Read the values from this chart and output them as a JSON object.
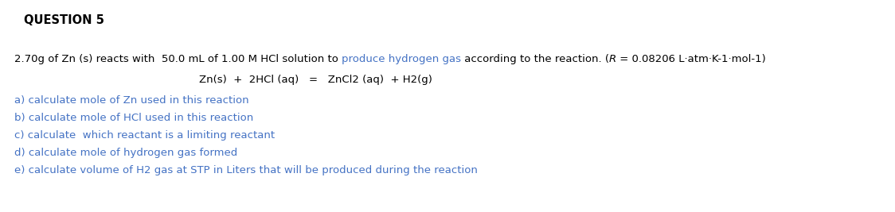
{
  "title": "QUESTION 5",
  "title_fontsize": 10.5,
  "title_fontweight": "bold",
  "title_color": "#000000",
  "line1_parts": [
    {
      "text": "2.70g of Zn (s) reacts with  50.0 mL of 1.00 M HCl solution to ",
      "color": "#000000",
      "italic": false
    },
    {
      "text": "produce hydrogen gas",
      "color": "#4472C4",
      "italic": false
    },
    {
      "text": " according to the reaction. (",
      "color": "#000000",
      "italic": false
    },
    {
      "text": "R",
      "color": "#000000",
      "italic": true
    },
    {
      "text": " = 0.08206 L·atm·K-1·mol-1)",
      "color": "#000000",
      "italic": false
    }
  ],
  "line2": "Zn(s)  +  2HCl (aq)   =   ZnCl2 (aq)  + H2(g)",
  "line_a": "a) calculate mole of Zn used in this reaction",
  "line_b": "b) calculate mole of HCl used in this reaction",
  "line_c": "c) calculate  which reactant is a limiting reactant",
  "line_d": "d) calculate mole of hydrogen gas formed",
  "line_e": "e) calculate volume of H2 gas at STP in Liters that will be produced during the reaction",
  "black_color": "#000000",
  "blue_color": "#4472C4",
  "bg_color": "#ffffff",
  "fontsize": 9.5,
  "dpi": 100,
  "fig_width": 11.24,
  "fig_height": 2.67
}
